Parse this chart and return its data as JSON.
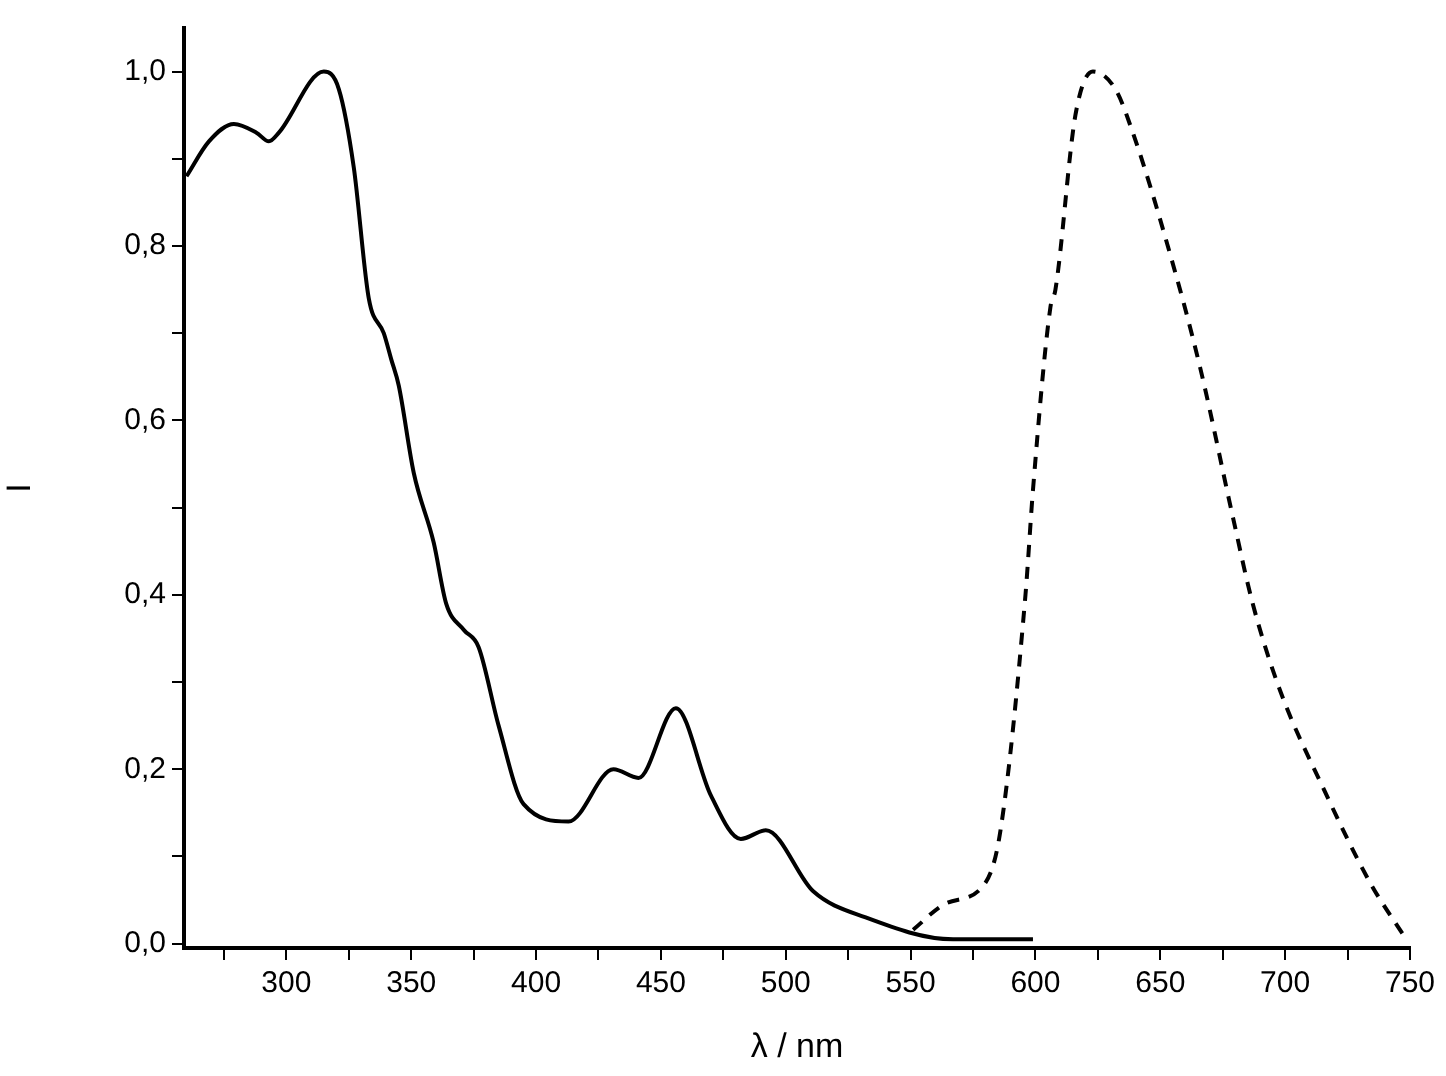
{
  "chart_data": {
    "type": "line",
    "xlabel": "λ / nm",
    "ylabel": "I",
    "xlim": [
      259,
      750
    ],
    "ylim": [
      -0.005,
      1.05
    ],
    "xticks": [
      {
        "value": 275,
        "label": null
      },
      {
        "value": 300,
        "label": "300"
      },
      {
        "value": 325,
        "label": null
      },
      {
        "value": 350,
        "label": "350"
      },
      {
        "value": 375,
        "label": null
      },
      {
        "value": 400,
        "label": "400"
      },
      {
        "value": 425,
        "label": null
      },
      {
        "value": 450,
        "label": "450"
      },
      {
        "value": 475,
        "label": null
      },
      {
        "value": 500,
        "label": "500"
      },
      {
        "value": 525,
        "label": null
      },
      {
        "value": 550,
        "label": "550"
      },
      {
        "value": 575,
        "label": null
      },
      {
        "value": 600,
        "label": "600"
      },
      {
        "value": 625,
        "label": null
      },
      {
        "value": 650,
        "label": "650"
      },
      {
        "value": 675,
        "label": null
      },
      {
        "value": 700,
        "label": "700"
      },
      {
        "value": 725,
        "label": null
      },
      {
        "value": 750,
        "label": "750"
      }
    ],
    "yticks": [
      {
        "value": 0,
        "label": "0,0"
      },
      {
        "value": 0.1,
        "label": null
      },
      {
        "value": 0.2,
        "label": "0,2"
      },
      {
        "value": 0.3,
        "label": null
      },
      {
        "value": 0.4,
        "label": "0,4"
      },
      {
        "value": 0.5,
        "label": null
      },
      {
        "value": 0.6,
        "label": "0,6"
      },
      {
        "value": 0.7,
        "label": null
      },
      {
        "value": 0.8,
        "label": "0,8"
      },
      {
        "value": 0.9,
        "label": null
      },
      {
        "value": 1,
        "label": "1,0"
      }
    ],
    "grid": false,
    "legend": false,
    "marker": "none",
    "series": [
      {
        "color": "#000000",
        "line_style": "solid",
        "x": [
          260,
          269,
          279,
          288,
          293,
          297,
          315,
          321,
          327,
          333,
          339,
          342,
          345,
          351,
          359,
          364,
          371,
          377,
          385,
          395,
          413,
          431,
          441,
          456,
          470,
          482,
          492,
          511,
          532,
          567,
          599
        ],
        "values": [
          0.88,
          0.92,
          0.94,
          0.93,
          0.92,
          0.93,
          1.0,
          0.98,
          0.89,
          0.74,
          0.7,
          0.67,
          0.64,
          0.54,
          0.46,
          0.39,
          0.36,
          0.34,
          0.25,
          0.16,
          0.14,
          0.2,
          0.19,
          0.27,
          0.17,
          0.12,
          0.13,
          0.06,
          0.03,
          0.005,
          0.005
        ]
      },
      {
        "color": "#000000",
        "line_style": "dashed",
        "x": [
          551,
          564,
          580,
          586,
          596,
          599,
          606,
          608,
          616,
          623,
          632,
          639,
          653,
          666,
          679,
          687,
          698,
          715,
          734,
          748
        ],
        "values": [
          0.016,
          0.046,
          0.07,
          0.13,
          0.4,
          0.52,
          0.73,
          0.75,
          0.95,
          1.0,
          0.98,
          0.93,
          0.8,
          0.66,
          0.49,
          0.39,
          0.29,
          0.18,
          0.07,
          0.007
        ]
      }
    ]
  }
}
